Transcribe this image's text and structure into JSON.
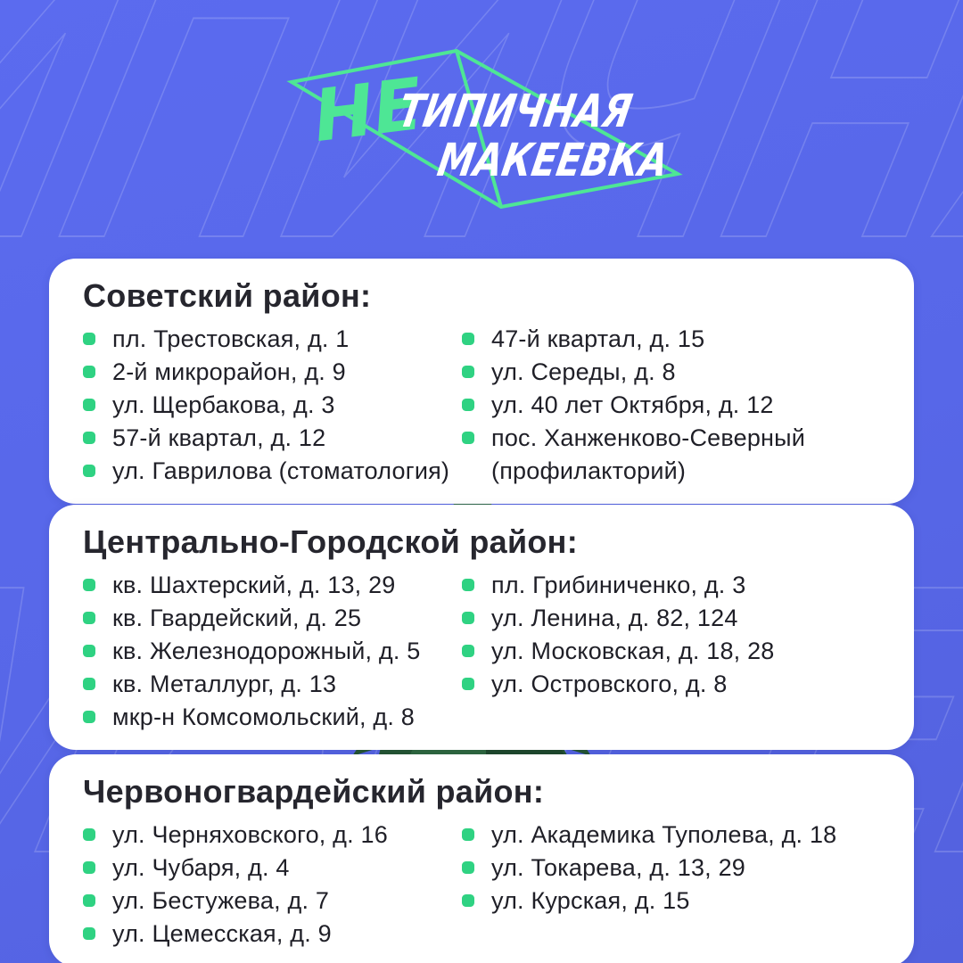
{
  "colors": {
    "bg_top": "#5b6bef",
    "bg_bottom": "#5361de",
    "accent_green": "#4ee695",
    "bullet_green": "#2fd282",
    "card_bg": "#ffffff",
    "ink_title": "#26262e",
    "ink_item": "#1f1f27",
    "tree_dark": "#1f4a2b",
    "tree_light": "#2f6f40"
  },
  "logo": {
    "prefix": "НЕ",
    "line1": "ТИПИЧНАЯ",
    "line2": "МАКЕЕВКА"
  },
  "background": {
    "watermark_line1": "ИПИЧНАЯ",
    "watermark_line2": "МАКЕЕВКА"
  },
  "sections": [
    {
      "title": "Советский район:",
      "col1": [
        "пл. Трестовская, д. 1",
        "2-й микрорайон, д. 9",
        "ул. Щербакова, д. 3",
        "57-й квартал, д. 12",
        "ул. Гаврилова (стоматология)"
      ],
      "col2": [
        "47-й квартал, д. 15",
        "ул. Середы, д. 8",
        "ул. 40 лет Октября, д. 12",
        "пос. Ханженково-Северный (профилакторий)"
      ]
    },
    {
      "title": "Центрально-Городской район:",
      "col1": [
        "кв. Шахтерский, д. 13, 29",
        "кв. Гвардейский, д. 25",
        "кв. Железнодорожный, д. 5",
        "кв. Металлург, д. 13",
        "мкр-н Комсомольский, д. 8"
      ],
      "col2": [
        "пл. Грибиниченко, д. 3",
        "ул. Ленина, д. 82, 124",
        "ул. Московская, д. 18, 28",
        "ул. Островского, д. 8"
      ]
    },
    {
      "title": "Червоногвардейский район:",
      "col1": [
        "ул. Черняховского, д. 16",
        "ул. Чубаря, д. 4",
        "ул. Бестужева, д. 7",
        "ул. Цемесская, д. 9"
      ],
      "col2": [
        "ул. Академика Туполева, д. 18",
        "ул. Токарева, д. 13, 29",
        "ул. Курская, д. 15"
      ]
    }
  ]
}
